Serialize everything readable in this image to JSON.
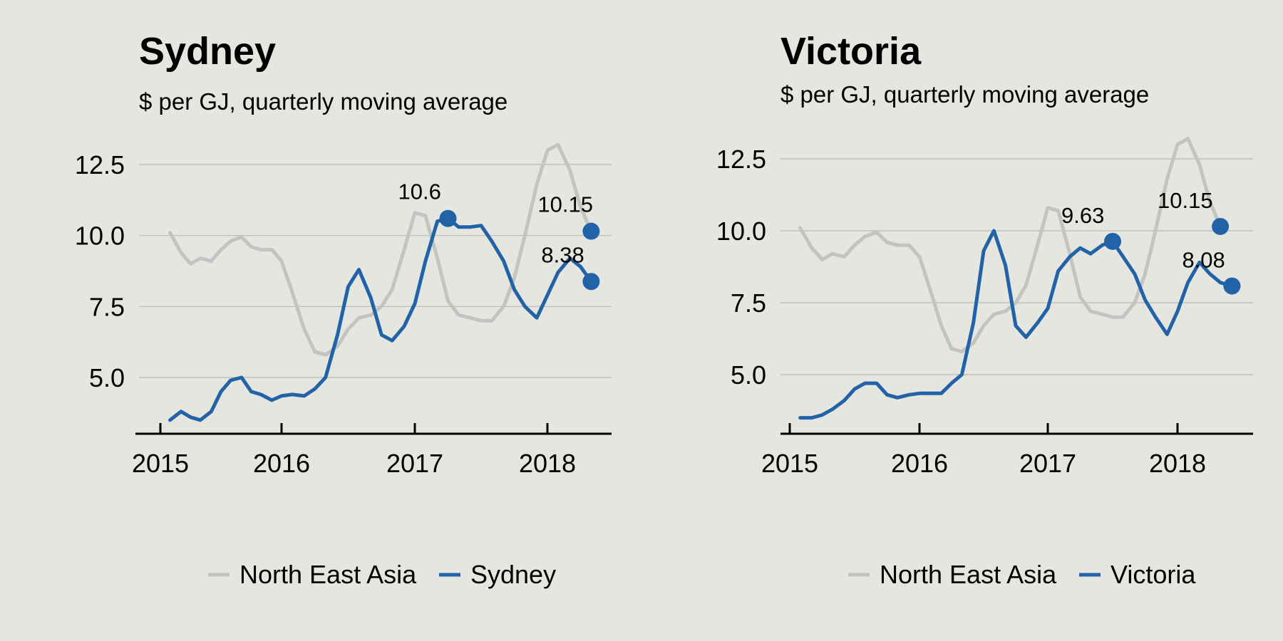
{
  "chart_data": [
    {
      "type": "line",
      "title": "Sydney",
      "subtitle": "$ per GJ, quarterly moving average",
      "xlabel": "",
      "ylabel": "",
      "x_tick_labels": [
        "2015",
        "2016",
        "2017",
        "2018"
      ],
      "y_tick_labels": [
        "5.0",
        "7.5",
        "10.0",
        "12.5"
      ],
      "y_ticks": [
        5.0,
        7.5,
        10.0,
        12.5
      ],
      "ylim": [
        3.0,
        14.0
      ],
      "xlim": [
        2015.0,
        2018.5
      ],
      "grid": true,
      "legend_position": "bottom",
      "series": [
        {
          "name": "North East Asia",
          "color": "#c3c3c3",
          "x": [
            2015.08,
            2015.17,
            2015.25,
            2015.33,
            2015.42,
            2015.5,
            2015.58,
            2015.67,
            2015.75,
            2015.83,
            2015.92,
            2016.0,
            2016.08,
            2016.17,
            2016.25,
            2016.33,
            2016.42,
            2016.5,
            2016.58,
            2016.67,
            2016.75,
            2016.83,
            2016.92,
            2017.0,
            2017.08,
            2017.17,
            2017.25,
            2017.33,
            2017.42,
            2017.5,
            2017.58,
            2017.67,
            2017.75,
            2017.83,
            2017.92,
            2018.0,
            2018.08,
            2018.17,
            2018.25,
            2018.33
          ],
          "values": [
            10.1,
            9.4,
            9.0,
            9.2,
            9.1,
            9.5,
            9.8,
            9.95,
            9.6,
            9.5,
            9.5,
            9.1,
            8.0,
            6.7,
            5.9,
            5.8,
            6.1,
            6.7,
            7.1,
            7.2,
            7.5,
            8.1,
            9.5,
            10.8,
            10.7,
            9.2,
            7.7,
            7.2,
            7.1,
            7.0,
            7.0,
            7.5,
            8.5,
            10.0,
            11.8,
            13.0,
            13.2,
            12.3,
            11.0,
            10.15
          ]
        },
        {
          "name": "Sydney",
          "color": "#2262a7",
          "x": [
            2015.08,
            2015.17,
            2015.25,
            2015.33,
            2015.42,
            2015.5,
            2015.58,
            2015.67,
            2015.75,
            2015.83,
            2015.92,
            2016.0,
            2016.08,
            2016.17,
            2016.25,
            2016.33,
            2016.42,
            2016.5,
            2016.58,
            2016.67,
            2016.75,
            2016.83,
            2016.92,
            2017.0,
            2017.08,
            2017.17,
            2017.25,
            2017.33,
            2017.42,
            2017.5,
            2017.58,
            2017.67,
            2017.75,
            2017.83,
            2017.92,
            2018.0,
            2018.08,
            2018.17,
            2018.25,
            2018.33
          ],
          "values": [
            3.5,
            3.8,
            3.6,
            3.5,
            3.8,
            4.5,
            4.9,
            5.0,
            4.5,
            4.4,
            4.2,
            4.35,
            4.4,
            4.35,
            4.6,
            5.0,
            6.5,
            8.2,
            8.8,
            7.8,
            6.5,
            6.3,
            6.8,
            7.6,
            9.1,
            10.5,
            10.6,
            10.3,
            10.3,
            10.35,
            9.8,
            9.1,
            8.1,
            7.5,
            7.1,
            7.9,
            8.7,
            9.2,
            8.9,
            8.38
          ]
        }
      ],
      "data_labels": [
        {
          "text": "10.6",
          "x": 2017.25,
          "y": 10.6
        },
        {
          "text": "10.15",
          "x": 2018.33,
          "y": 10.15
        },
        {
          "text": "8.38",
          "x": 2018.33,
          "y": 8.38
        }
      ]
    },
    {
      "type": "line",
      "title": "Victoria",
      "subtitle": "$ per GJ, quarterly moving average",
      "xlabel": "",
      "ylabel": "",
      "x_tick_labels": [
        "2015",
        "2016",
        "2017",
        "2018"
      ],
      "y_tick_labels": [
        "5.0",
        "7.5",
        "10.0",
        "12.5"
      ],
      "y_ticks": [
        5.0,
        7.5,
        10.0,
        12.5
      ],
      "ylim": [
        3.0,
        14.0
      ],
      "xlim": [
        2015.0,
        2018.58
      ],
      "grid": true,
      "legend_position": "bottom",
      "series": [
        {
          "name": "North East Asia",
          "color": "#c3c3c3",
          "x": [
            2015.08,
            2015.17,
            2015.25,
            2015.33,
            2015.42,
            2015.5,
            2015.58,
            2015.67,
            2015.75,
            2015.83,
            2015.92,
            2016.0,
            2016.08,
            2016.17,
            2016.25,
            2016.33,
            2016.42,
            2016.5,
            2016.58,
            2016.67,
            2016.75,
            2016.83,
            2016.92,
            2017.0,
            2017.08,
            2017.17,
            2017.25,
            2017.33,
            2017.42,
            2017.5,
            2017.58,
            2017.67,
            2017.75,
            2017.83,
            2017.92,
            2018.0,
            2018.08,
            2018.17,
            2018.25,
            2018.33
          ],
          "values": [
            10.1,
            9.4,
            9.0,
            9.2,
            9.1,
            9.5,
            9.8,
            9.95,
            9.6,
            9.5,
            9.5,
            9.1,
            8.0,
            6.7,
            5.9,
            5.8,
            6.1,
            6.7,
            7.1,
            7.2,
            7.5,
            8.1,
            9.5,
            10.8,
            10.7,
            9.2,
            7.7,
            7.2,
            7.1,
            7.0,
            7.0,
            7.5,
            8.5,
            10.0,
            11.8,
            13.0,
            13.2,
            12.3,
            11.0,
            10.15
          ]
        },
        {
          "name": "Victoria",
          "color": "#2262a7",
          "x": [
            2015.08,
            2015.17,
            2015.25,
            2015.33,
            2015.42,
            2015.5,
            2015.58,
            2015.67,
            2015.75,
            2015.83,
            2015.92,
            2016.0,
            2016.08,
            2016.17,
            2016.25,
            2016.33,
            2016.42,
            2016.5,
            2016.58,
            2016.67,
            2016.75,
            2016.83,
            2016.92,
            2017.0,
            2017.08,
            2017.17,
            2017.25,
            2017.33,
            2017.42,
            2017.5,
            2017.58,
            2017.67,
            2017.75,
            2017.83,
            2017.92,
            2018.0,
            2018.08,
            2018.17,
            2018.25,
            2018.33,
            2018.42
          ],
          "values": [
            3.5,
            3.5,
            3.6,
            3.8,
            4.1,
            4.5,
            4.7,
            4.7,
            4.3,
            4.2,
            4.3,
            4.35,
            4.35,
            4.35,
            4.7,
            5.0,
            6.8,
            9.3,
            10.0,
            8.8,
            6.7,
            6.3,
            6.8,
            7.3,
            8.6,
            9.1,
            9.4,
            9.2,
            9.5,
            9.63,
            9.1,
            8.5,
            7.6,
            7.0,
            6.4,
            7.2,
            8.2,
            8.9,
            8.5,
            8.2,
            8.08
          ]
        }
      ],
      "data_labels": [
        {
          "text": "9.63",
          "x": 2017.5,
          "y": 9.63
        },
        {
          "text": "10.15",
          "x": 2018.33,
          "y": 10.15
        },
        {
          "text": "8.08",
          "x": 2018.42,
          "y": 8.08
        }
      ]
    }
  ]
}
